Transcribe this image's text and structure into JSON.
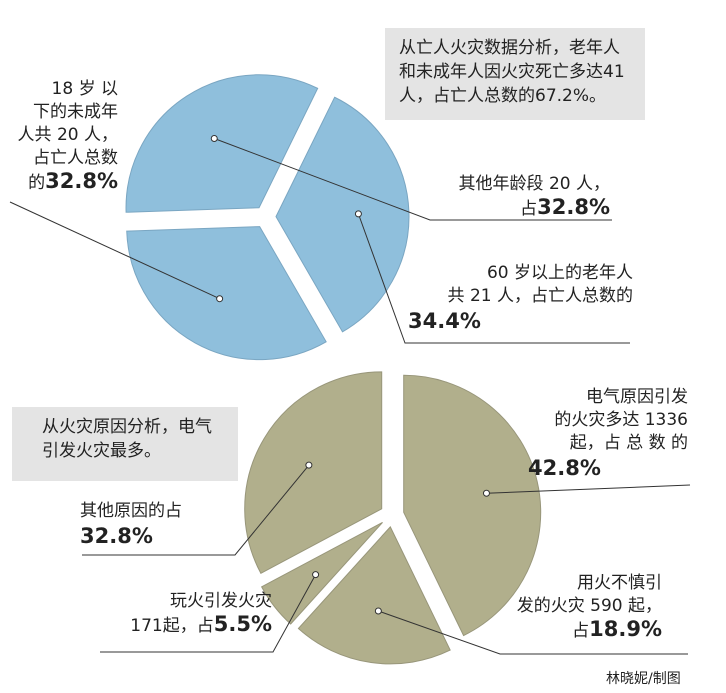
{
  "chart_data": [
    {
      "type": "pie",
      "categories": [
        "18岁以下的未成年人",
        "其他年龄段",
        "60岁以上的老年人"
      ],
      "values": [
        32.8,
        32.8,
        34.4
      ],
      "counts": [
        20,
        20,
        21
      ],
      "colors": [
        "#8fbfdc",
        "#8fbfdc",
        "#8fbfdc"
      ],
      "note": "从亡人火灾数据分析，老年人和未成年人因火灾死亡多达41人，占亡人总数的67.2%。",
      "labels": [
        {
          "lines": [
            "18 岁 以",
            "下的未成年",
            "人共 20 人，",
            "占亡人总数",
            "的"
          ],
          "pct": "32.8%"
        },
        {
          "lines": [
            "其他年龄段 20 人，",
            "占"
          ],
          "pct": "32.8%"
        },
        {
          "lines": [
            "60 岁以上的老年人",
            "共 21 人，占亡人总数的"
          ],
          "pct": "34.4%"
        }
      ]
    },
    {
      "type": "pie",
      "categories": [
        "电气原因引发",
        "其他原因",
        "玩火引发火灾",
        "用火不慎引发"
      ],
      "values": [
        42.8,
        32.8,
        5.5,
        18.9
      ],
      "counts": [
        1336,
        null,
        171,
        590
      ],
      "colors": [
        "#b1af8c",
        "#b1af8c",
        "#b1af8c",
        "#b1af8c"
      ],
      "note": "从火灾原因分析，电气引发火灾最多。",
      "labels": [
        {
          "lines": [
            "电气原因引发",
            "的火灾多达 1336",
            "起，占 总 数 的"
          ],
          "pct": "42.8%"
        },
        {
          "lines": [
            "其他原因的占"
          ],
          "pct": "32.8%"
        },
        {
          "lines": [
            "玩火引发火灾",
            "171起，占"
          ],
          "pct": "5.5%"
        },
        {
          "lines": [
            "用火不慎引",
            "发的火灾 590 起，",
            "占"
          ],
          "pct": "18.9%"
        }
      ]
    }
  ],
  "credit": "林晓妮/制图"
}
